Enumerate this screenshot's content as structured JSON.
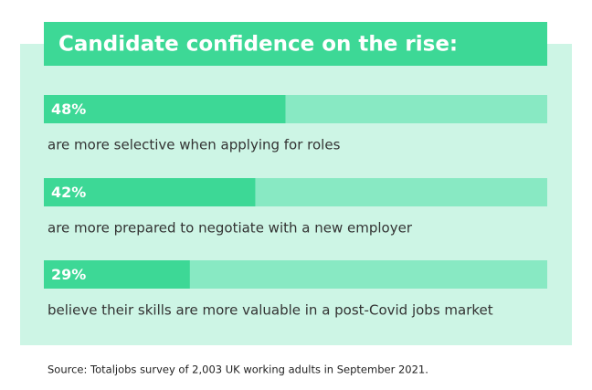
{
  "chart_data": {
    "type": "bar",
    "orientation": "horizontal",
    "title": "Candidate confidence on the rise:",
    "categories": [
      "are more selective when applying for roles",
      "are more prepared to negotiate with a new employer",
      "believe their skills are more valuable in a post-Covid jobs market"
    ],
    "values": [
      48,
      42,
      29
    ],
    "value_labels": [
      "48%",
      "42%",
      "29%"
    ],
    "xlim": [
      0,
      100
    ],
    "color": "#3dd896",
    "track_color": "#88e9c3",
    "panel_color": "#cdf5e5",
    "source": "Source: Totaljobs survey of 2,003 UK working adults in September 2021."
  }
}
